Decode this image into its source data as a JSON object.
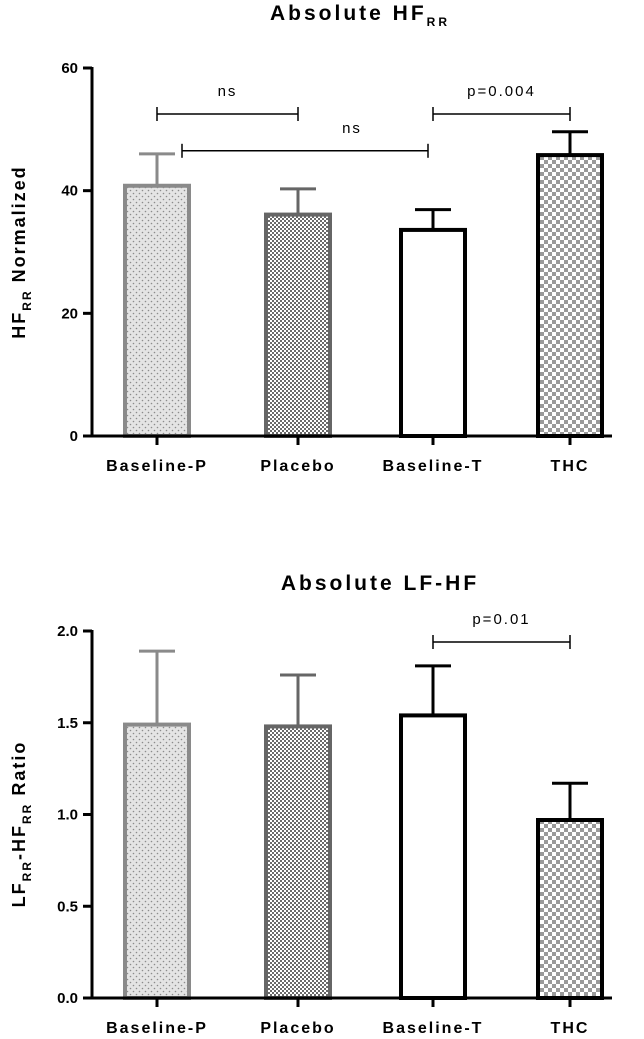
{
  "chart_data": [
    {
      "type": "bar",
      "title": "Absolute HF",
      "title_subscript": "RR",
      "ylabel": "HF",
      "ylabel_subscript": "RR",
      "ylabel_suffix": " Normalized",
      "categories": [
        "Baseline-P",
        "Placebo",
        "Baseline-T",
        "THC"
      ],
      "values": [
        40.8,
        36.1,
        33.6,
        45.8
      ],
      "error_upper": [
        46.0,
        40.3,
        36.9,
        49.6
      ],
      "ylim": [
        0,
        60
      ],
      "yticks": [
        0,
        20,
        40,
        60
      ],
      "ytick_labels": [
        "0",
        "20",
        "40",
        "60"
      ],
      "patterns": [
        "dots",
        "dense-checker",
        "none",
        "checker"
      ],
      "edge_colors": [
        "#8a8a8a",
        "#666666",
        "#000000",
        "#000000"
      ],
      "annotations": [
        {
          "label": "ns",
          "from": 0,
          "to": 1,
          "y": 52.5
        },
        {
          "label": "ns",
          "from": 0,
          "to": 2,
          "y": 46.5
        },
        {
          "label": "p=0.004",
          "from": 2,
          "to": 3,
          "y": 52.5
        }
      ]
    },
    {
      "type": "bar",
      "title": "Absolute LF-HF",
      "ylabel_parts": [
        {
          "text": "LF",
          "sub": false
        },
        {
          "text": "RR",
          "sub": true
        },
        {
          "text": "-HF",
          "sub": false
        },
        {
          "text": "RR",
          "sub": true
        },
        {
          "text": " Ratio",
          "sub": false
        }
      ],
      "categories": [
        "Baseline-P",
        "Placebo",
        "Baseline-T",
        "THC"
      ],
      "values": [
        1.49,
        1.48,
        1.54,
        0.97
      ],
      "error_upper": [
        1.89,
        1.76,
        1.81,
        1.17
      ],
      "ylim": [
        0,
        2.0
      ],
      "yticks": [
        0,
        0.5,
        1.0,
        1.5,
        2.0
      ],
      "ytick_labels": [
        "0.0",
        "0.5",
        "1.0",
        "1.5",
        "2.0"
      ],
      "patterns": [
        "dots",
        "dense-checker",
        "none",
        "checker"
      ],
      "edge_colors": [
        "#8a8a8a",
        "#666666",
        "#000000",
        "#000000"
      ],
      "annotations": [
        {
          "label": "p=0.01",
          "from": 2,
          "to": 3,
          "y": 1.94
        }
      ]
    }
  ]
}
